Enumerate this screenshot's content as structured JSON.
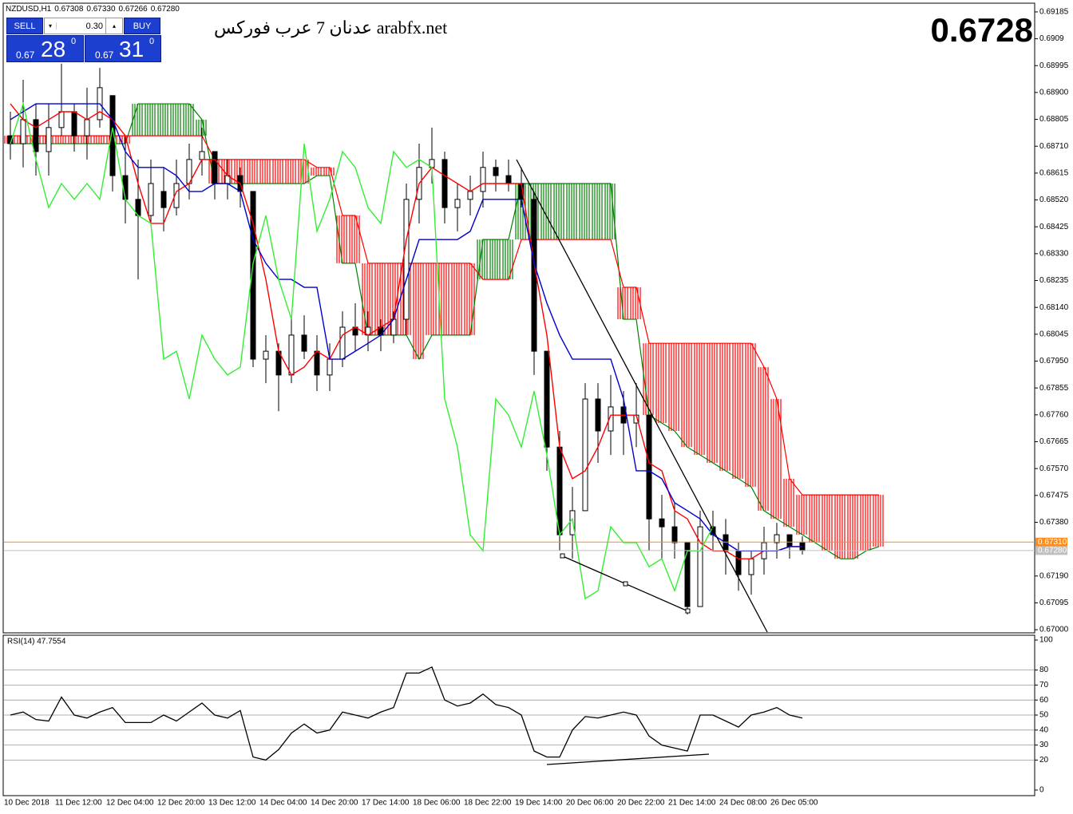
{
  "header": {
    "symbol": "NZDUSD,H1",
    "ohlc": [
      "0.67308",
      "0.67330",
      "0.67266",
      "0.67280"
    ]
  },
  "trade_panel": {
    "sell_label": "SELL",
    "buy_label": "BUY",
    "lot_size": "0.30",
    "sell_price": {
      "prefix": "0.67",
      "big": "28",
      "small": "0"
    },
    "buy_price": {
      "prefix": "0.67",
      "big": "31",
      "small": "0"
    }
  },
  "watermark": "عدنان 7 عرب فوركس arabfx.net",
  "big_price": "0.6728",
  "chart_data": [
    {
      "type": "candlestick",
      "categories": [
        "10 Dec 2018",
        null,
        null,
        null,
        "11 Dec 12:00",
        null,
        null,
        null,
        "12 Dec 04:00",
        null,
        null,
        null,
        "12 Dec 20:00",
        null,
        null,
        null,
        "13 Dec 12:00",
        null,
        null,
        null,
        "14 Dec 04:00",
        null,
        null,
        null,
        "14 Dec 20:00",
        null,
        null,
        null,
        "17 Dec 14:00",
        null,
        null,
        null,
        "18 Dec 06:00",
        null,
        null,
        null,
        "18 Dec 22:00",
        null,
        null,
        null,
        "19 Dec 14:00",
        null,
        null,
        null,
        "20 Dec 06:00",
        null,
        null,
        null,
        "20 Dec 22:00",
        null,
        null,
        null,
        "21 Dec 14:00",
        null,
        null,
        null,
        "24 Dec 08:00",
        null,
        null,
        null,
        "26 Dec 05:00",
        null,
        null,
        null,
        null,
        null,
        null,
        null,
        null
      ],
      "open": [
        0.68747,
        0.68719,
        0.68804,
        0.68691,
        0.68776,
        0.68832,
        0.68747,
        0.68804,
        0.68889,
        0.68606,
        0.68522,
        0.68465,
        0.6855,
        0.68493,
        0.68578,
        0.68663,
        0.68691,
        0.68578,
        0.68606,
        0.6855,
        0.67957,
        0.67985,
        0.67901,
        0.68042,
        0.67985,
        0.67901,
        0.67957,
        0.6807,
        0.68042,
        0.6807,
        0.68042,
        0.68098,
        0.68522,
        0.68635,
        0.68663,
        0.68493,
        0.68522,
        0.6855,
        0.68635,
        0.68606,
        0.68578,
        0.68522,
        0.67985,
        0.67646,
        0.67336,
        0.67421,
        0.67816,
        0.67703,
        0.67788,
        0.67731,
        0.67759,
        0.67392,
        0.67364,
        0.67308,
        0.67082,
        0.67364,
        0.67336,
        0.67279,
        0.67195,
        0.67251,
        0.67308,
        0.67336,
        0.67308,
        null,
        null,
        null,
        null,
        null,
        null
      ],
      "high": [
        0.68832,
        0.68945,
        0.6886,
        0.6886,
        0.69002,
        0.6886,
        0.68917,
        0.68987,
        0.68889,
        0.68747,
        0.68663,
        0.68663,
        0.68635,
        0.68663,
        0.68719,
        0.68776,
        0.68691,
        0.68663,
        0.68635,
        0.6855,
        0.68042,
        0.68013,
        0.68098,
        0.68112,
        0.68042,
        0.68013,
        0.68126,
        0.68155,
        0.68126,
        0.68098,
        0.68126,
        0.68578,
        0.68719,
        0.68776,
        0.68691,
        0.68578,
        0.68606,
        0.68691,
        0.68663,
        0.68663,
        0.68635,
        0.6855,
        0.67985,
        0.67703,
        0.67505,
        0.67872,
        0.67872,
        0.67901,
        0.67844,
        0.67872,
        0.67759,
        0.67477,
        0.67449,
        0.67308,
        0.67421,
        0.67421,
        0.67392,
        0.67308,
        0.67279,
        0.67364,
        0.67378,
        0.67336,
        0.6733,
        null,
        null,
        null,
        null,
        null,
        null
      ],
      "low": [
        0.68663,
        0.68635,
        0.68606,
        0.68606,
        0.68747,
        0.68691,
        0.68663,
        0.68776,
        0.6855,
        0.68437,
        0.68239,
        0.68437,
        0.68409,
        0.68465,
        0.68522,
        0.68606,
        0.68522,
        0.68522,
        0.68493,
        0.67929,
        0.67872,
        0.67773,
        0.67872,
        0.67957,
        0.67844,
        0.67844,
        0.67929,
        0.67985,
        0.67985,
        0.67985,
        0.68013,
        0.68042,
        0.68437,
        0.68578,
        0.68437,
        0.68409,
        0.68465,
        0.68493,
        0.6855,
        0.6855,
        0.68493,
        0.67901,
        0.67562,
        0.67279,
        0.67251,
        0.67421,
        0.6759,
        0.67618,
        0.67618,
        0.67646,
        0.67279,
        0.67251,
        0.67251,
        0.67054,
        0.67082,
        0.67279,
        0.67195,
        0.67138,
        0.67124,
        0.67195,
        0.67251,
        0.67251,
        0.67266,
        null,
        null,
        null,
        null,
        null,
        null
      ],
      "close": [
        0.68719,
        0.68804,
        0.68691,
        0.68776,
        0.68832,
        0.68747,
        0.68804,
        0.68917,
        0.68606,
        0.68522,
        0.68465,
        0.68578,
        0.68493,
        0.68578,
        0.68663,
        0.68691,
        0.68578,
        0.68606,
        0.6855,
        0.67957,
        0.67985,
        0.67901,
        0.68042,
        0.67985,
        0.67901,
        0.67957,
        0.6807,
        0.68042,
        0.6807,
        0.68042,
        0.68098,
        0.68522,
        0.68635,
        0.68663,
        0.68493,
        0.68522,
        0.6855,
        0.68635,
        0.68606,
        0.68578,
        0.68522,
        0.67985,
        0.67646,
        0.67336,
        0.67421,
        0.67816,
        0.67703,
        0.67788,
        0.67731,
        0.67759,
        0.67392,
        0.67364,
        0.67308,
        0.67082,
        0.67364,
        0.67336,
        0.67279,
        0.67195,
        0.67251,
        0.67308,
        0.67336,
        0.67294,
        0.6728,
        null,
        null,
        null,
        null,
        null,
        null
      ],
      "up_color": "#ffffff",
      "down_color": "#000000",
      "wick_color": "#000000",
      "series": [
        {
          "color": "#ff0000",
          "values": [
            0.6886,
            0.68804,
            0.68776,
            0.68804,
            0.68832,
            0.68832,
            0.68804,
            0.68832,
            0.68804,
            0.68747,
            0.68578,
            0.68437,
            0.68437,
            0.6855,
            0.68578,
            0.68663,
            0.68663,
            0.68606,
            0.68578,
            0.68437,
            0.68239,
            0.67985,
            0.67901,
            0.67929,
            0.67985,
            0.67957,
            0.68042,
            0.6807,
            0.68042,
            0.6807,
            0.68098,
            0.6838,
            0.68578,
            0.68635,
            0.68606,
            0.68578,
            0.6855,
            0.68578,
            0.68578,
            0.68578,
            0.68578,
            0.68296,
            0.68042,
            0.67646,
            0.67534,
            0.67562,
            0.67646,
            0.67759,
            0.67759,
            0.67759,
            0.6759,
            0.67562,
            0.67421,
            0.67392,
            0.67308,
            0.67279,
            0.67279,
            0.67251,
            0.67251,
            0.67279,
            0.67279,
            0.67294,
            0.67294,
            null,
            null,
            null,
            null,
            null,
            null
          ]
        },
        {
          "color": "#0000cc",
          "values": [
            0.68804,
            0.68832,
            0.6886,
            0.6886,
            0.6886,
            0.6886,
            0.6886,
            0.6886,
            0.68804,
            0.68691,
            0.68635,
            0.68635,
            0.68635,
            0.68606,
            0.6855,
            0.6855,
            0.68578,
            0.68578,
            0.6855,
            0.6838,
            0.68296,
            0.68239,
            0.68239,
            0.68211,
            0.68211,
            0.67957,
            0.67957,
            0.67985,
            0.68013,
            0.68042,
            0.68098,
            0.68239,
            0.6838,
            0.6838,
            0.6838,
            0.6838,
            0.68409,
            0.68522,
            0.68522,
            0.68522,
            0.68522,
            0.68296,
            0.68155,
            0.68042,
            0.67957,
            0.67957,
            0.67957,
            0.67957,
            0.67816,
            0.67562,
            0.67562,
            0.67534,
            0.67449,
            0.67421,
            0.67392,
            0.67336,
            0.67308,
            0.67279,
            0.67279,
            0.67279,
            0.67279,
            0.67294,
            0.67294,
            null,
            null,
            null,
            null,
            null,
            null
          ]
        },
        {
          "color": "#33ee33",
          "values": [
            0.68719,
            0.6886,
            0.68663,
            0.68493,
            0.68578,
            0.68522,
            0.68578,
            0.68522,
            0.68776,
            0.68522,
            0.68465,
            0.68437,
            0.67957,
            0.67985,
            0.67816,
            0.68042,
            0.67957,
            0.67901,
            0.67929,
            0.68296,
            0.68465,
            0.68239,
            0.68098,
            0.68719,
            0.68409,
            0.68522,
            0.68691,
            0.68635,
            0.68493,
            0.68437,
            0.68691,
            0.68635,
            0.68663,
            0.68635,
            0.67816,
            0.67646,
            0.67336,
            0.67279,
            0.67816,
            0.67759,
            0.67646,
            0.67844,
            0.67618,
            0.67336,
            0.67392,
            0.6711,
            0.67138,
            0.67364,
            0.67308,
            0.67308,
            0.67223,
            0.67251,
            0.67138,
            0.67279,
            0.67279,
            0.67364,
            null,
            null,
            null,
            null,
            null,
            null,
            null,
            null,
            null,
            null,
            null,
            null,
            null
          ]
        }
      ],
      "cloud": {
        "bull_color": "#008000",
        "bear_color": "#ff0000",
        "span_a": [
          0.68719,
          0.68719,
          0.68719,
          0.68719,
          0.68719,
          0.68719,
          0.68719,
          0.68719,
          0.68719,
          0.68719,
          0.6886,
          0.6886,
          0.6886,
          0.6886,
          0.6886,
          0.68804,
          0.68578,
          0.68578,
          0.68578,
          0.68578,
          0.68578,
          0.68578,
          0.68578,
          0.68578,
          0.68606,
          0.68606,
          0.68296,
          0.68296,
          0.68042,
          0.68042,
          0.68042,
          0.68042,
          0.67957,
          0.68042,
          0.68042,
          0.68042,
          0.68042,
          0.6838,
          0.6838,
          0.6838,
          0.68578,
          0.68578,
          0.68578,
          0.68578,
          0.68578,
          0.68578,
          0.68578,
          0.68578,
          0.68098,
          0.68098,
          0.67759,
          0.67731,
          0.67703,
          0.67646,
          0.67618,
          0.6759,
          0.67562,
          0.67534,
          0.67505,
          0.67421,
          0.67392,
          0.67364,
          0.67336,
          0.67308,
          0.67279,
          0.67251,
          0.67251,
          0.67279,
          0.67294
        ],
        "span_b": [
          0.68747,
          0.68747,
          0.68747,
          0.68747,
          0.68747,
          0.68747,
          0.68747,
          0.68747,
          0.68747,
          0.68747,
          0.68747,
          0.68747,
          0.68747,
          0.68747,
          0.68747,
          0.68747,
          0.68663,
          0.68663,
          0.68663,
          0.68663,
          0.68663,
          0.68663,
          0.68663,
          0.68663,
          0.68635,
          0.68635,
          0.68465,
          0.68465,
          0.68296,
          0.68296,
          0.68296,
          0.68296,
          0.68296,
          0.68296,
          0.68296,
          0.68296,
          0.68296,
          0.68239,
          0.68239,
          0.68239,
          0.6838,
          0.6838,
          0.6838,
          0.6838,
          0.6838,
          0.6838,
          0.6838,
          0.6838,
          0.68211,
          0.68211,
          0.68013,
          0.68013,
          0.68013,
          0.68013,
          0.68013,
          0.68013,
          0.68013,
          0.68013,
          0.68013,
          0.67929,
          0.67816,
          0.67534,
          0.67477,
          0.67477,
          0.67477,
          0.67477,
          0.67477,
          0.67477,
          0.67477
        ]
      },
      "price_lines": [
        {
          "value": 0.6731,
          "label": "0.67310",
          "color": "#ff8c1a"
        },
        {
          "value": 0.6728,
          "label": "0.67280",
          "color": "#c0c0c0"
        }
      ],
      "ylim": [
        0.66989,
        0.69213
      ],
      "yticks": [
        0.69185,
        0.6909,
        0.68995,
        {
          "value": 0.689,
          "label": "0.68900"
        },
        0.68805,
        {
          "value": 0.6871,
          "label": "0.68710"
        },
        0.68615,
        {
          "value": 0.6852,
          "label": "0.68520"
        },
        0.68425,
        {
          "value": 0.6833,
          "label": "0.68330"
        },
        0.68235,
        {
          "value": 0.6814,
          "label": "0.68140"
        },
        0.68045,
        {
          "value": 0.6795,
          "label": "0.67950"
        },
        0.67855,
        {
          "value": 0.6776,
          "label": "0.67760"
        },
        0.67665,
        {
          "value": 0.6757,
          "label": "0.67570"
        },
        0.67475,
        {
          "value": 0.6738,
          "label": "0.67380"
        },
        {
          "value": 0.6719,
          "label": "0.67190"
        },
        0.67095,
        {
          "value": 0.67,
          "label": "0.67000"
        }
      ]
    },
    {
      "type": "line",
      "label": "RSI(14) 47.7554",
      "color": "#000000",
      "values": [
        50,
        52,
        47,
        46,
        62,
        50,
        48,
        52,
        55,
        45,
        45,
        45,
        50,
        46,
        52,
        58,
        50,
        48,
        53,
        22,
        20,
        27,
        38,
        44,
        38,
        40,
        52,
        50,
        48,
        52,
        55,
        78,
        78,
        82,
        60,
        56,
        58,
        64,
        57,
        55,
        50,
        26,
        22,
        22,
        40,
        49,
        48,
        50,
        52,
        50,
        36,
        30,
        28,
        26,
        50,
        50,
        46,
        42,
        50,
        52,
        55,
        50,
        48,
        null,
        null,
        null,
        null,
        null,
        null
      ],
      "ylim": [
        0,
        100
      ],
      "yticks": [
        100,
        80,
        70,
        60,
        50,
        40,
        30,
        20,
        0
      ],
      "grid": true
    }
  ]
}
